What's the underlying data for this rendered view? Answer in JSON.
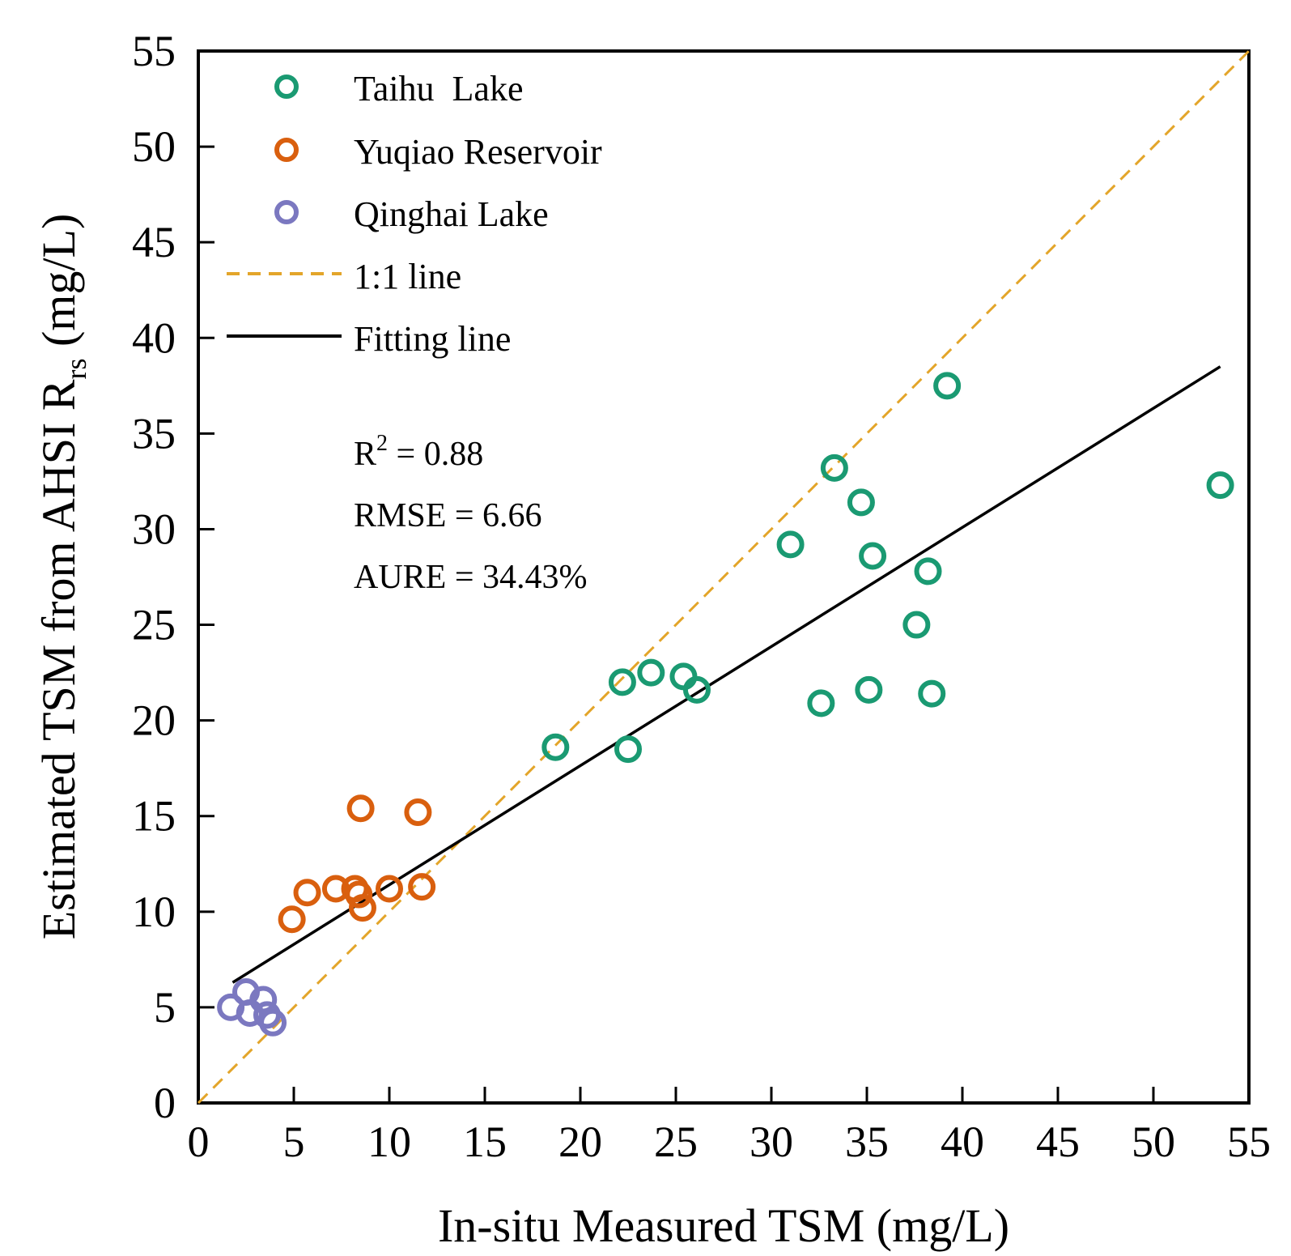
{
  "chart_data": {
    "type": "scatter",
    "title": "",
    "xlabel": "In-situ Measured TSM (mg/L)",
    "ylabel": {
      "prefix": "Estimated TSM from AHSI R",
      "subscript": "rs",
      "suffix": " (mg/L)"
    },
    "xlim": [
      0,
      55
    ],
    "ylim": [
      0,
      55
    ],
    "xticks": [
      0,
      5,
      10,
      15,
      20,
      25,
      30,
      35,
      40,
      45,
      50,
      55
    ],
    "yticks": [
      0,
      5,
      10,
      15,
      20,
      25,
      30,
      35,
      40,
      45,
      50,
      55
    ],
    "grid": false,
    "legend_position": "top-left",
    "series": [
      {
        "name": "Taihu  Lake",
        "color": "#1a9a72",
        "marker": "open-circle",
        "points": [
          [
            18.7,
            18.6
          ],
          [
            22.2,
            22.0
          ],
          [
            22.5,
            18.5
          ],
          [
            23.7,
            22.5
          ],
          [
            25.4,
            22.3
          ],
          [
            26.1,
            21.6
          ],
          [
            31.0,
            29.2
          ],
          [
            32.6,
            20.9
          ],
          [
            33.3,
            33.2
          ],
          [
            34.7,
            31.4
          ],
          [
            35.1,
            21.6
          ],
          [
            35.3,
            28.6
          ],
          [
            37.6,
            25.0
          ],
          [
            38.2,
            27.8
          ],
          [
            38.4,
            21.4
          ],
          [
            39.2,
            37.5
          ],
          [
            53.5,
            32.3
          ]
        ]
      },
      {
        "name": "Yuqiao Reservoir",
        "color": "#d95f0e",
        "marker": "open-circle",
        "points": [
          [
            4.9,
            9.6
          ],
          [
            5.7,
            11.0
          ],
          [
            7.2,
            11.2
          ],
          [
            8.2,
            11.2
          ],
          [
            8.4,
            10.9
          ],
          [
            8.6,
            10.2
          ],
          [
            8.5,
            15.4
          ],
          [
            10.0,
            11.2
          ],
          [
            11.5,
            15.2
          ],
          [
            11.7,
            11.3
          ]
        ]
      },
      {
        "name": "Qinghai Lake",
        "color": "#7b78c0",
        "marker": "open-circle",
        "points": [
          [
            1.7,
            5.0
          ],
          [
            2.5,
            5.8
          ],
          [
            2.7,
            4.7
          ],
          [
            3.4,
            5.4
          ],
          [
            3.6,
            4.6
          ],
          [
            3.9,
            4.2
          ]
        ]
      }
    ],
    "lines": [
      {
        "name": "1:1 line",
        "color": "#e3a52a",
        "style": "dashed",
        "points": [
          [
            0,
            0
          ],
          [
            55,
            55
          ]
        ]
      },
      {
        "name": "Fitting line",
        "color": "#000000",
        "style": "solid",
        "points": [
          [
            1.8,
            6.3
          ],
          [
            53.5,
            38.5
          ]
        ]
      }
    ],
    "annotations": {
      "r2": {
        "prefix": "R",
        "superscript": "2",
        "suffix": " = 0.88"
      },
      "rmse": "RMSE = 6.66",
      "aure": "AURE = 34.43%"
    }
  }
}
